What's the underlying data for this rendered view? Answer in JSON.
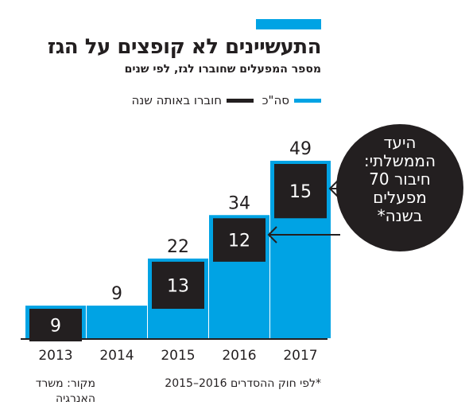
{
  "header": {
    "title": "התעשיינים לא קופצים על הגז",
    "subtitle": "מספר המפעלים שחוברו לגז, לפי שנים"
  },
  "legend": {
    "total_label": "סה\"כ",
    "connected_label": "חוברו באותה שנה"
  },
  "colors": {
    "total": "#00a3e4",
    "connected": "#231f20",
    "bubble": "#231f20",
    "text": "#231f20"
  },
  "chart_data": {
    "type": "bar",
    "categories": [
      "2013",
      "2014",
      "2015",
      "2016",
      "2017"
    ],
    "series": [
      {
        "name": "סה\"כ",
        "values": [
          9,
          9,
          22,
          34,
          49
        ]
      },
      {
        "name": "חוברו באותה שנה",
        "values": [
          9,
          0,
          13,
          12,
          15
        ]
      }
    ],
    "total_labels": [
      "",
      "9",
      "22",
      "34",
      "49"
    ],
    "connected_labels": [
      "9",
      "",
      "13",
      "12",
      "15"
    ],
    "ylim": [
      0,
      49
    ],
    "grid": false,
    "legend_position": "top-right"
  },
  "goal_bubble": {
    "lines": [
      "היעד",
      "הממשלתי:",
      "חיבור 70",
      "מפעלים",
      "בשנה*"
    ]
  },
  "footer": {
    "source": "מקור: משרד האנרגיה",
    "note": "*לפי חוק ההסדרים 2016–2015"
  }
}
